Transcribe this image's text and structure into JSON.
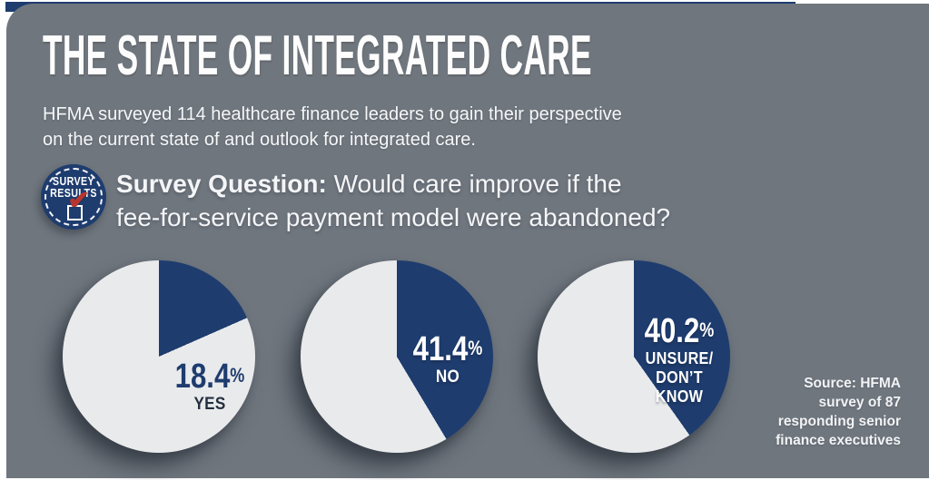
{
  "colors": {
    "page_bg": "#ffffff",
    "panel_bg": "#6f767e",
    "navy": "#1e3c6e",
    "pie_remainder": "#e9eaec",
    "red_check": "#b8352e",
    "text_white": "#fdfdfd",
    "yes_sublabel_text": "#242f3f"
  },
  "header": {
    "title": "THE STATE OF INTEGRATED CARE",
    "subtitle_lines": [
      "HFMA surveyed 114 healthcare finance leaders to gain their perspective",
      "on the current state of and outlook for integrated care."
    ]
  },
  "badge": {
    "line1": "SURVEY",
    "line2": "RESULTS",
    "check_glyph": "✔"
  },
  "question": {
    "label": "Survey Question:",
    "line1_rest": " Would care improve if the",
    "line2": "fee-for-service payment model were abandoned?"
  },
  "chart_data": {
    "type": "pie",
    "title": "Would care improve if the fee-for-service payment model were abandoned?",
    "slice_color": "#1e3c6e",
    "remainder_color": "#e9eaec",
    "start_angle_deg": 0,
    "direction": "clockwise",
    "series": [
      {
        "label": "YES",
        "value_pct": 18.4,
        "number": "18.4",
        "percent_sign": "%",
        "label_lines": [
          "YES"
        ]
      },
      {
        "label": "NO",
        "value_pct": 41.4,
        "number": "41.4",
        "percent_sign": "%",
        "label_lines": [
          "NO"
        ]
      },
      {
        "label": "UNSURE/DON’T KNOW",
        "value_pct": 40.2,
        "number": "40.2",
        "percent_sign": "%",
        "label_lines": [
          "UNSURE/",
          "DON’T",
          "KNOW"
        ]
      }
    ]
  },
  "source": {
    "lines": [
      "Source: HFMA",
      "survey of 87",
      "responding senior",
      "finance executives"
    ]
  }
}
